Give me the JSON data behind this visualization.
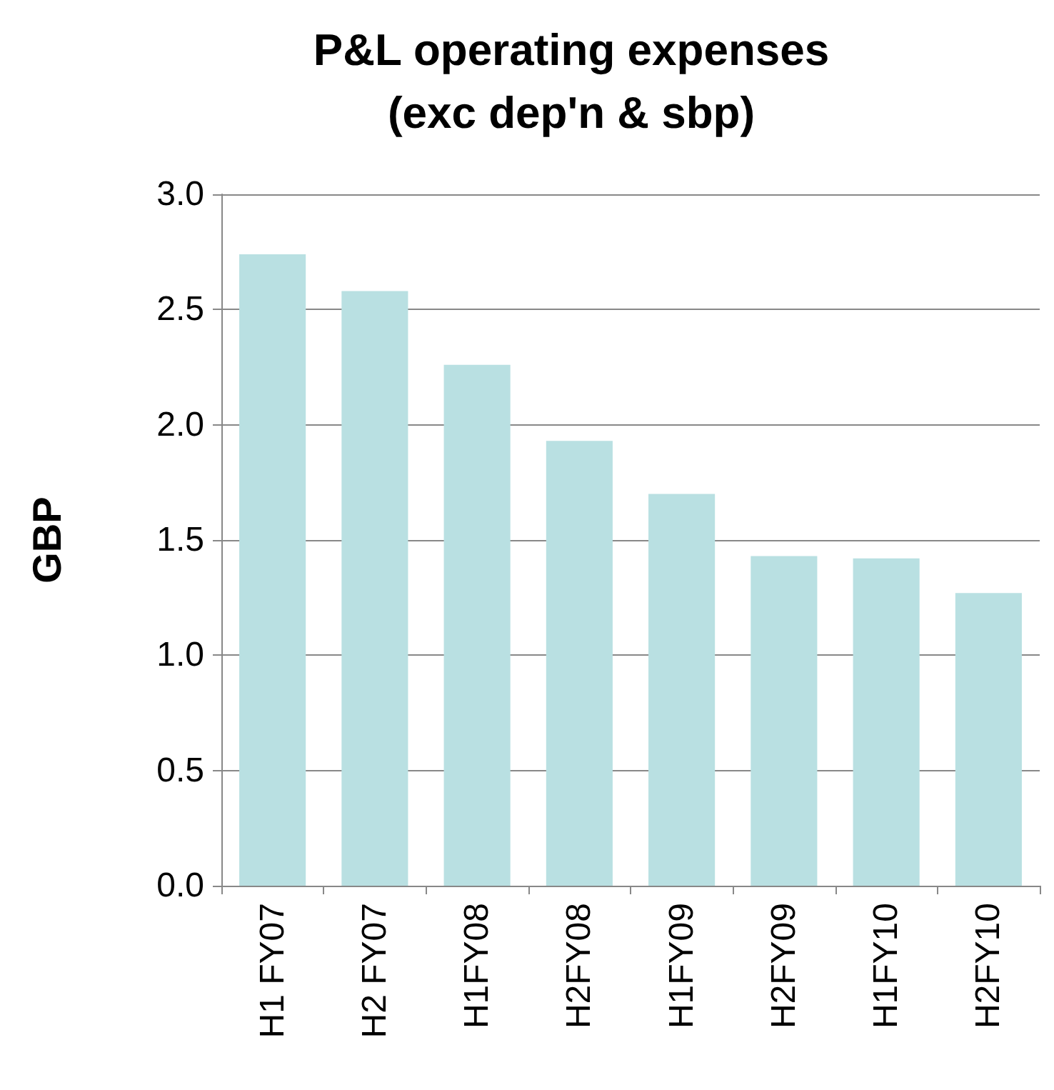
{
  "chart_data": {
    "type": "bar",
    "title": "P&L operating expenses\n(exc dep'n & sbp)",
    "ylabel": "GBP",
    "categories": [
      "H1 FY07",
      "H2 FY07",
      "H1FY08",
      "H2FY08",
      "H1FY09",
      "H2FY09",
      "H1FY10",
      "H2FY10"
    ],
    "values": [
      2.74,
      2.58,
      2.26,
      1.93,
      1.7,
      1.43,
      1.42,
      1.27
    ],
    "color": "#b9e0e2",
    "ylim": [
      0,
      3
    ],
    "yticks": [
      {
        "value": 0,
        "label": "0.0"
      },
      {
        "value": 0.5,
        "label": "0.5"
      },
      {
        "value": 1,
        "label": "1.0"
      },
      {
        "value": 1.5,
        "label": "1.5"
      },
      {
        "value": 2,
        "label": "2.0"
      },
      {
        "value": 2.5,
        "label": "2.5"
      },
      {
        "value": 3,
        "label": "3.0"
      }
    ],
    "grid": "y"
  }
}
